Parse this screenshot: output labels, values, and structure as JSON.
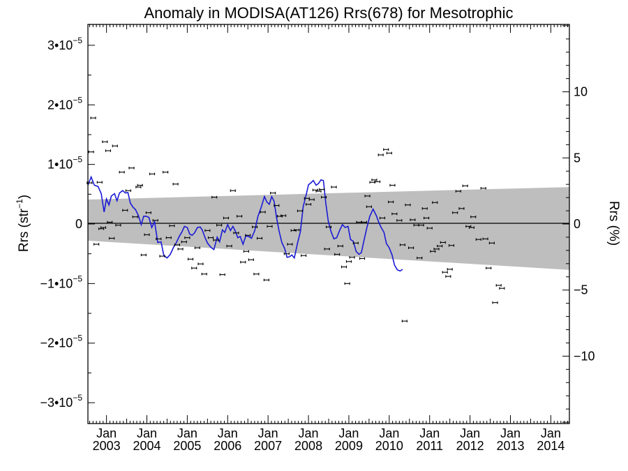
{
  "chart_data": {
    "type": "scatter",
    "title": "Anomaly in MODISA(AT126) Rrs(678) for Mesotrophic",
    "ylabel_left_base": "Rrs (str",
    "ylabel_left_sup": "−1",
    "ylabel_left_end": ")",
    "ylabel_right": "Rrs (%)",
    "x_tick_top": "Jan",
    "x_tick_years": [
      "2003",
      "2004",
      "2005",
      "2006",
      "2007",
      "2008",
      "2009",
      "2010",
      "2011",
      "2012",
      "2013",
      "2014"
    ],
    "x_range": [
      2002.54,
      2014.46
    ],
    "y_left_range": [
      -3.35e-05,
      3.35e-05
    ],
    "y_left_ticks": [
      {
        "value": 3e-05,
        "mant": "3•10",
        "exp": "−5"
      },
      {
        "value": 2e-05,
        "mant": "2•10",
        "exp": "−5"
      },
      {
        "value": 1e-05,
        "mant": "1•10",
        "exp": "−5"
      },
      {
        "value": 0,
        "mant": "0",
        "exp": ""
      },
      {
        "value": -1e-05,
        "mant": "−1•10",
        "exp": "−5"
      },
      {
        "value": -2e-05,
        "mant": "−2•10",
        "exp": "−5"
      },
      {
        "value": -3e-05,
        "mant": "−3•10",
        "exp": "−5"
      }
    ],
    "y_right_range": [
      -15.1,
      15.1
    ],
    "y_right_ticks": [
      10,
      5,
      0,
      -5,
      -10
    ],
    "y_right_tick_labels": [
      "10",
      "5",
      "0",
      "−5",
      "−10"
    ],
    "band": {
      "upper": [
        [
          2002.54,
          4.1e-06
        ],
        [
          2014.46,
          6.2e-06
        ]
      ],
      "lower": [
        [
          2002.54,
          -2.8e-06
        ],
        [
          2014.46,
          -7.7e-06
        ]
      ],
      "color": "#bebebe"
    },
    "smooth_color": "#1a1ad6",
    "point_color": "#000000",
    "points": [
      [
        2002.58,
        6.9e-06
      ],
      [
        2002.62,
        1.21e-05
      ],
      [
        2002.67,
        1.78e-05
      ],
      [
        2002.75,
        -3.4e-06
      ],
      [
        2002.83,
        7e-06
      ],
      [
        2002.87,
        -8e-07
      ],
      [
        2002.92,
        -6e-07
      ],
      [
        2002.96,
        1.38e-05
      ],
      [
        2003.04,
        1.23e-05
      ],
      [
        2003.08,
        3e-07
      ],
      [
        2003.13,
        -2.4e-06
      ],
      [
        2003.21,
        1.31e-05
      ],
      [
        2003.29,
        -2e-07
      ],
      [
        2003.38,
        8.7e-06
      ],
      [
        2003.46,
        2.3e-06
      ],
      [
        2003.54,
        5.6e-06
      ],
      [
        2003.62,
        9.4e-06
      ],
      [
        2003.71,
        1.2e-06
      ],
      [
        2003.79,
        6.2e-06
      ],
      [
        2003.83,
        6.5e-06
      ],
      [
        2003.92,
        -5.2e-06
      ],
      [
        2004.0,
        -1.8e-06
      ],
      [
        2004.04,
        1.9e-06
      ],
      [
        2004.13,
        8.4e-06
      ],
      [
        2004.21,
        6e-07
      ],
      [
        2004.29,
        -2.5e-06
      ],
      [
        2004.38,
        -5.4e-06
      ],
      [
        2004.46,
        8.7e-06
      ],
      [
        2004.54,
        -2.3e-06
      ],
      [
        2004.62,
        -3e-07
      ],
      [
        2004.71,
        6.7e-06
      ],
      [
        2004.75,
        -3.5e-06
      ],
      [
        2004.83,
        -4.2e-06
      ],
      [
        2004.92,
        -3e-06
      ],
      [
        2005.0,
        -2.3e-06
      ],
      [
        2005.08,
        -5.9e-06
      ],
      [
        2005.17,
        -7.4e-06
      ],
      [
        2005.25,
        -4e-06
      ],
      [
        2005.33,
        -6.7e-06
      ],
      [
        2005.42,
        -8.4e-06
      ],
      [
        2005.5,
        -1.1e-06
      ],
      [
        2005.58,
        -2.3e-06
      ],
      [
        2005.67,
        4.5e-06
      ],
      [
        2005.71,
        -2.7e-06
      ],
      [
        2005.79,
        -2e-07
      ],
      [
        2005.87,
        -8.5e-06
      ],
      [
        2005.96,
        1e-06
      ],
      [
        2006.04,
        -3.7e-06
      ],
      [
        2006.13,
        5.6e-06
      ],
      [
        2006.21,
        -1.5e-06
      ],
      [
        2006.29,
        1.3e-06
      ],
      [
        2006.38,
        -6.4e-06
      ],
      [
        2006.46,
        -4.6e-06
      ],
      [
        2006.5,
        -1.9e-06
      ],
      [
        2006.58,
        -6e-06
      ],
      [
        2006.67,
        -5e-07
      ],
      [
        2006.71,
        -8.4e-06
      ],
      [
        2006.79,
        -2.4e-06
      ],
      [
        2006.87,
        2e-06
      ],
      [
        2006.96,
        -9.4e-06
      ],
      [
        2007.04,
        -4e-07
      ],
      [
        2007.12,
        5.2e-06
      ],
      [
        2007.21,
        3.1e-06
      ],
      [
        2007.29,
        1.3e-06
      ],
      [
        2007.38,
        1.4e-06
      ],
      [
        2007.46,
        -5e-06
      ],
      [
        2007.54,
        -3.4e-06
      ],
      [
        2007.63,
        -1.1e-06
      ],
      [
        2007.71,
        -1e-06
      ],
      [
        2007.79,
        2.2e-06
      ],
      [
        2007.88,
        -5.3e-06
      ],
      [
        2007.96,
        4.3e-06
      ],
      [
        2008.0,
        3.3e-06
      ],
      [
        2008.08,
        4.1e-06
      ],
      [
        2008.17,
        5.7e-06
      ],
      [
        2008.25,
        5.5e-06
      ],
      [
        2008.33,
        5.8e-06
      ],
      [
        2008.38,
        4.5e-06
      ],
      [
        2008.46,
        -4.2e-06
      ],
      [
        2008.5,
        -5e-07
      ],
      [
        2008.63,
        6.2e-06
      ],
      [
        2008.71,
        -5.1e-06
      ],
      [
        2008.79,
        -3.7e-06
      ],
      [
        2008.88,
        -7.2e-06
      ],
      [
        2008.96,
        -1e-05
      ],
      [
        2009.0,
        -6.3e-06
      ],
      [
        2009.08,
        -5.6e-06
      ],
      [
        2009.17,
        -3.2e-06
      ],
      [
        2009.25,
        3e-07
      ],
      [
        2009.33,
        -5.8e-06
      ],
      [
        2009.38,
        3e-07
      ],
      [
        2009.46,
        4.7e-06
      ],
      [
        2009.5,
        2.9e-06
      ],
      [
        2009.58,
        7e-06
      ],
      [
        2009.63,
        7.4e-06
      ],
      [
        2009.71,
        7.1e-06
      ],
      [
        2009.79,
        1.16e-05
      ],
      [
        2009.83,
        1e-06
      ],
      [
        2009.92,
        1.25e-05
      ],
      [
        2010.0,
        1.19e-05
      ],
      [
        2010.04,
        3.7e-06
      ],
      [
        2010.08,
        6.5e-06
      ],
      [
        2010.13,
        1.7e-06
      ],
      [
        2010.25,
        6e-07
      ],
      [
        2010.33,
        -3.5e-06
      ],
      [
        2010.38,
        -1.63e-05
      ],
      [
        2010.46,
        3.2e-06
      ],
      [
        2010.54,
        -4e-06
      ],
      [
        2010.58,
        7e-07
      ],
      [
        2010.67,
        -2e-07
      ],
      [
        2010.75,
        -5.7e-06
      ],
      [
        2010.79,
        -2e-07
      ],
      [
        2010.88,
        2.6e-06
      ],
      [
        2010.92,
        1e-06
      ],
      [
        2011.0,
        -7e-07
      ],
      [
        2011.08,
        -4.6e-06
      ],
      [
        2011.13,
        3.6e-06
      ],
      [
        2011.17,
        -4.2e-06
      ],
      [
        2011.25,
        -3.7e-06
      ],
      [
        2011.33,
        -3.1e-06
      ],
      [
        2011.38,
        -8.1e-06
      ],
      [
        2011.46,
        -8.8e-06
      ],
      [
        2011.5,
        -7.6e-06
      ],
      [
        2011.54,
        -3.6e-06
      ],
      [
        2011.63,
        1.9e-06
      ],
      [
        2011.71,
        5.5e-06
      ],
      [
        2011.79,
        2.6e-06
      ],
      [
        2011.88,
        6.4e-06
      ],
      [
        2011.96,
        -4e-07
      ],
      [
        2012.04,
        -6e-07
      ],
      [
        2012.08,
        1.2e-06
      ],
      [
        2012.21,
        -2.6e-06
      ],
      [
        2012.33,
        6e-06
      ],
      [
        2012.38,
        -2.5e-06
      ],
      [
        2012.46,
        -7.4e-06
      ],
      [
        2012.54,
        -3.2e-06
      ],
      [
        2012.62,
        -1.32e-05
      ],
      [
        2012.71,
        -1.03e-05
      ],
      [
        2012.79,
        -1.08e-05
      ]
    ],
    "smooth": [
      [
        2002.54,
        6.5e-06
      ],
      [
        2002.62,
        7.9e-06
      ],
      [
        2002.7,
        6.5e-06
      ],
      [
        2002.79,
        6.3e-06
      ],
      [
        2002.87,
        5.1e-06
      ],
      [
        2002.94,
        2e-06
      ],
      [
        2003.0,
        4.2e-06
      ],
      [
        2003.06,
        3.2e-06
      ],
      [
        2003.12,
        4.7e-06
      ],
      [
        2003.2,
        5.1e-06
      ],
      [
        2003.26,
        3.9e-06
      ],
      [
        2003.32,
        5.2e-06
      ],
      [
        2003.4,
        5.6e-06
      ],
      [
        2003.47,
        5.2e-06
      ],
      [
        2003.53,
        5.3e-06
      ],
      [
        2003.59,
        3.5e-06
      ],
      [
        2003.66,
        2.8e-06
      ],
      [
        2003.72,
        2.4e-06
      ],
      [
        2003.79,
        1.4e-06
      ],
      [
        2003.86,
        -1e-07
      ],
      [
        2003.92,
        1.3e-06
      ],
      [
        2003.98,
        1.3e-06
      ],
      [
        2004.05,
        1.1e-06
      ],
      [
        2004.12,
        -6e-07
      ],
      [
        2004.19,
        4e-07
      ],
      [
        2004.27,
        -3.1e-06
      ],
      [
        2004.35,
        -3e-06
      ],
      [
        2004.42,
        -5.3e-06
      ],
      [
        2004.5,
        -5.7e-06
      ],
      [
        2004.58,
        -5.1e-06
      ],
      [
        2004.66,
        -3.9e-06
      ],
      [
        2004.73,
        -3.1e-06
      ],
      [
        2004.8,
        -2.1e-06
      ],
      [
        2004.87,
        -1.3e-06
      ],
      [
        2004.93,
        -4e-07
      ],
      [
        2005.0,
        -6e-07
      ],
      [
        2005.06,
        -1.7e-06
      ],
      [
        2005.12,
        -1.9e-06
      ],
      [
        2005.18,
        -1.5e-06
      ],
      [
        2005.25,
        -6e-07
      ],
      [
        2005.32,
        -5e-07
      ],
      [
        2005.37,
        -1e-06
      ],
      [
        2005.44,
        -2.3e-06
      ],
      [
        2005.5,
        -3.2e-06
      ],
      [
        2005.58,
        -3.9e-06
      ],
      [
        2005.66,
        -4.3e-06
      ],
      [
        2005.74,
        -2.2e-06
      ],
      [
        2005.8,
        -3e-06
      ],
      [
        2005.87,
        -1e-06
      ],
      [
        2005.93,
        -1.4e-06
      ],
      [
        2006.0,
        -1e-07
      ],
      [
        2006.07,
        -1.1e-06
      ],
      [
        2006.13,
        -4e-07
      ],
      [
        2006.19,
        -1.2e-06
      ],
      [
        2006.25,
        -2.3e-06
      ],
      [
        2006.31,
        -2.1e-06
      ],
      [
        2006.38,
        -3.4e-06
      ],
      [
        2006.45,
        -2e-06
      ],
      [
        2006.52,
        -2.1e-06
      ],
      [
        2006.59,
        -2.4e-06
      ],
      [
        2006.67,
        -1.1e-06
      ],
      [
        2006.75,
        1.3e-06
      ],
      [
        2006.83,
        2.8e-06
      ],
      [
        2006.91,
        4.6e-06
      ],
      [
        2006.97,
        3.7e-06
      ],
      [
        2007.03,
        3.3e-06
      ],
      [
        2007.09,
        4.6e-06
      ],
      [
        2007.15,
        3.8e-06
      ],
      [
        2007.21,
        1.1e-06
      ],
      [
        2007.27,
        -1.1e-06
      ],
      [
        2007.34,
        -3.1e-06
      ],
      [
        2007.41,
        -4.1e-06
      ],
      [
        2007.47,
        -5.6e-06
      ],
      [
        2007.53,
        -5.5e-06
      ],
      [
        2007.59,
        -5.2e-06
      ],
      [
        2007.65,
        -5.7e-06
      ],
      [
        2007.73,
        -3.2e-06
      ],
      [
        2007.8,
        -1.3e-06
      ],
      [
        2007.87,
        2.9e-06
      ],
      [
        2007.94,
        4.8e-06
      ],
      [
        2008.0,
        6.6e-06
      ],
      [
        2008.06,
        6.9e-06
      ],
      [
        2008.12,
        7.3e-06
      ],
      [
        2008.19,
        6.5e-06
      ],
      [
        2008.25,
        6.8e-06
      ],
      [
        2008.31,
        7.4e-06
      ],
      [
        2008.37,
        7.3e-06
      ],
      [
        2008.43,
        3.5e-06
      ],
      [
        2008.49,
        5e-07
      ],
      [
        2008.56,
        -1.3e-06
      ],
      [
        2008.63,
        -2.5e-06
      ],
      [
        2008.7,
        -2.3e-06
      ],
      [
        2008.77,
        -1.1e-06
      ],
      [
        2008.84,
        -1e-07
      ],
      [
        2008.91,
        -6e-07
      ],
      [
        2008.98,
        -4e-07
      ],
      [
        2009.04,
        -2.6e-06
      ],
      [
        2009.11,
        -2.9e-06
      ],
      [
        2009.18,
        -4.6e-06
      ],
      [
        2009.25,
        -5.1e-06
      ],
      [
        2009.31,
        -4.8e-06
      ],
      [
        2009.37,
        -2.9e-06
      ],
      [
        2009.44,
        -8e-07
      ],
      [
        2009.52,
        1.3e-06
      ],
      [
        2009.6,
        2.5e-06
      ],
      [
        2009.68,
        1.4e-06
      ],
      [
        2009.74,
        3e-07
      ],
      [
        2009.8,
        -6e-07
      ],
      [
        2009.87,
        -1.4e-06
      ],
      [
        2009.93,
        -3.3e-06
      ],
      [
        2010.0,
        -4e-06
      ],
      [
        2010.07,
        -5.2e-06
      ],
      [
        2010.13,
        -6.9e-06
      ],
      [
        2010.2,
        -7.7e-06
      ],
      [
        2010.27,
        -7.9e-06
      ],
      [
        2010.33,
        -7.6e-06
      ]
    ]
  }
}
